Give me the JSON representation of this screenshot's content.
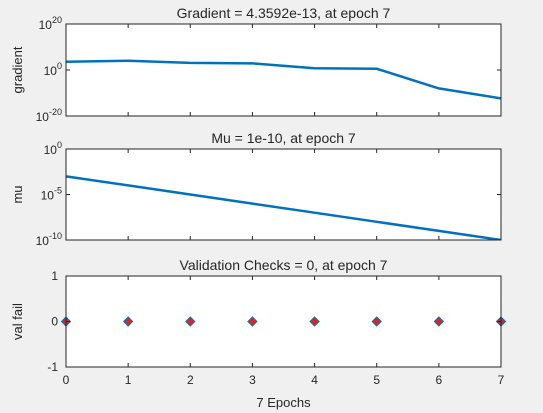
{
  "figure": {
    "background": "#f0f0f0",
    "xlabel": "7 Epochs"
  },
  "chart_data": [
    {
      "type": "line",
      "title": "Gradient = 4.3592e-13, at epoch 7",
      "xlabel": "",
      "ylabel": "gradient",
      "yscale": "log",
      "xlim": [
        0,
        7
      ],
      "ylim": [
        1e-20,
        1e+20
      ],
      "y_tick_labels": [
        {
          "base": "10",
          "exp": "-20"
        },
        {
          "base": "10",
          "exp": "0"
        },
        {
          "base": "10",
          "exp": "20"
        }
      ],
      "x_tick_labels_shown": false,
      "grid": false,
      "series": [
        {
          "color": "#0072bd",
          "x": [
            0,
            1,
            2,
            3,
            4,
            5,
            6,
            7
          ],
          "y": [
            4000.0,
            10000.0,
            1300.0,
            800.0,
            6.0,
            3.5,
            1e-08,
            4.3592e-13
          ]
        }
      ]
    },
    {
      "type": "line",
      "title": "Mu = 1e-10, at epoch 7",
      "xlabel": "",
      "ylabel": "mu",
      "yscale": "log",
      "xlim": [
        0,
        7
      ],
      "ylim": [
        1e-10,
        1
      ],
      "y_tick_labels": [
        {
          "base": "10",
          "exp": "-10"
        },
        {
          "base": "10",
          "exp": "-5"
        },
        {
          "base": "10",
          "exp": "0"
        }
      ],
      "x_tick_labels_shown": false,
      "grid": false,
      "series": [
        {
          "color": "#0072bd",
          "x": [
            0,
            1,
            2,
            3,
            4,
            5,
            6,
            7
          ],
          "y": [
            0.001,
            0.0001,
            1e-05,
            1e-06,
            1e-07,
            1e-08,
            1e-09,
            1e-10
          ]
        }
      ]
    },
    {
      "type": "scatter",
      "title": "Validation Checks = 0, at epoch 7",
      "xlabel": "7 Epochs",
      "ylabel": "val fail",
      "yscale": "linear",
      "xlim": [
        0,
        7
      ],
      "ylim": [
        -1,
        1
      ],
      "y_tick_labels": [
        "-1",
        "0",
        "1"
      ],
      "x_tick_labels": [
        "0",
        "1",
        "2",
        "3",
        "4",
        "5",
        "6",
        "7"
      ],
      "x_tick_labels_shown": true,
      "grid": false,
      "series": [
        {
          "marker": "diamond",
          "color": "#d62728",
          "edge_color": "#0072bd",
          "x": [
            0,
            1,
            2,
            3,
            4,
            5,
            6,
            7
          ],
          "y": [
            0,
            0,
            0,
            0,
            0,
            0,
            0,
            0
          ]
        }
      ]
    }
  ]
}
